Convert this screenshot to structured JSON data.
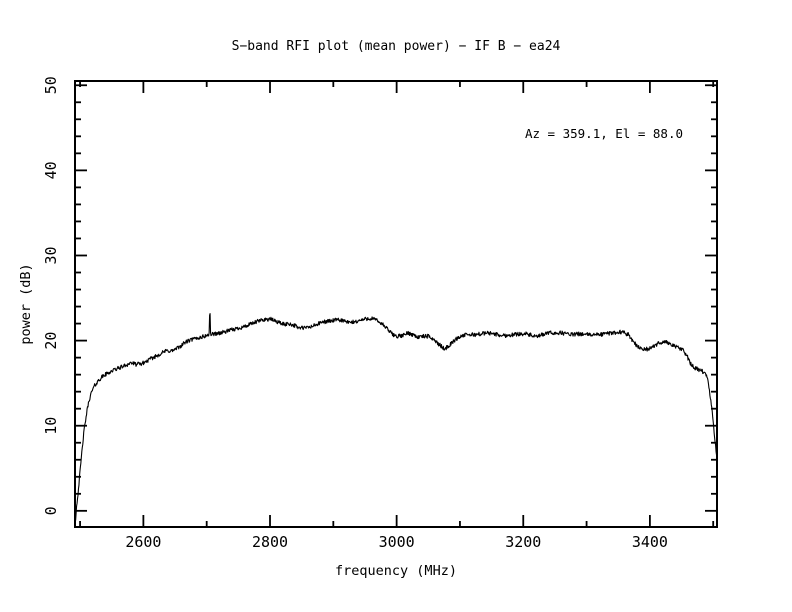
{
  "title": "S−band RFI plot (mean power) − IF B − ea24",
  "annotation": "Az = 359.1, El = 88.0",
  "colors": {
    "foreground": "#000000",
    "background": "#ffffff"
  },
  "chart_data": {
    "type": "line",
    "title": "S−band RFI plot (mean power) − IF B − ea24",
    "annotation": "Az = 359.1, El = 88.0",
    "xlabel": "frequency (MHz)",
    "ylabel": "power (dB)",
    "xlim": [
      2492,
      3506
    ],
    "ylim": [
      -1.9,
      50.5
    ],
    "x_major_ticks": [
      2600,
      2800,
      3000,
      3200,
      3400
    ],
    "x_minor_ticks": [
      2500,
      2700,
      2900,
      3100,
      3300,
      3500
    ],
    "y_major_ticks": [
      0,
      10,
      20,
      30,
      40,
      50
    ],
    "y_minor_step": 2,
    "grid": false,
    "legend": "none",
    "series": [
      {
        "name": "mean power spectrum",
        "noise_db": 0.24,
        "spike": {
          "freq": 2705,
          "peak_db": 24.2,
          "width_mhz": 0.6
        },
        "envelope": [
          [
            2493,
            -1.0
          ],
          [
            2494,
            0.2
          ],
          [
            2496,
            1.5
          ],
          [
            2498,
            3.0
          ],
          [
            2500,
            4.6
          ],
          [
            2502,
            6.2
          ],
          [
            2504,
            7.8
          ],
          [
            2506,
            9.2
          ],
          [
            2509,
            10.8
          ],
          [
            2512,
            12.2
          ],
          [
            2515,
            13.2
          ],
          [
            2519,
            14.1
          ],
          [
            2523,
            14.7
          ],
          [
            2528,
            15.2
          ],
          [
            2534,
            15.7
          ],
          [
            2542,
            16.1
          ],
          [
            2552,
            16.5
          ],
          [
            2562,
            16.8
          ],
          [
            2572,
            17.1
          ],
          [
            2580,
            17.4
          ],
          [
            2588,
            17.2
          ],
          [
            2598,
            17.3
          ],
          [
            2608,
            17.7
          ],
          [
            2618,
            18.1
          ],
          [
            2628,
            18.5
          ],
          [
            2636,
            18.8
          ],
          [
            2646,
            18.8
          ],
          [
            2656,
            19.2
          ],
          [
            2666,
            19.8
          ],
          [
            2676,
            20.1
          ],
          [
            2686,
            20.3
          ],
          [
            2696,
            20.5
          ],
          [
            2704,
            20.7
          ],
          [
            2712,
            20.8
          ],
          [
            2722,
            20.9
          ],
          [
            2732,
            21.1
          ],
          [
            2742,
            21.3
          ],
          [
            2752,
            21.5
          ],
          [
            2762,
            21.7
          ],
          [
            2772,
            22.0
          ],
          [
            2782,
            22.3
          ],
          [
            2792,
            22.5
          ],
          [
            2802,
            22.5
          ],
          [
            2812,
            22.2
          ],
          [
            2822,
            21.9
          ],
          [
            2830,
            22.0
          ],
          [
            2838,
            21.8
          ],
          [
            2846,
            21.5
          ],
          [
            2856,
            21.5
          ],
          [
            2864,
            21.6
          ],
          [
            2874,
            21.9
          ],
          [
            2884,
            22.2
          ],
          [
            2894,
            22.3
          ],
          [
            2904,
            22.4
          ],
          [
            2914,
            22.4
          ],
          [
            2924,
            22.1
          ],
          [
            2934,
            22.2
          ],
          [
            2944,
            22.4
          ],
          [
            2954,
            22.6
          ],
          [
            2962,
            22.6
          ],
          [
            2970,
            22.3
          ],
          [
            2978,
            21.9
          ],
          [
            2986,
            21.3
          ],
          [
            2994,
            20.7
          ],
          [
            3002,
            20.5
          ],
          [
            3010,
            20.6
          ],
          [
            3018,
            20.9
          ],
          [
            3026,
            20.7
          ],
          [
            3034,
            20.4
          ],
          [
            3042,
            20.5
          ],
          [
            3050,
            20.5
          ],
          [
            3058,
            20.2
          ],
          [
            3066,
            19.6
          ],
          [
            3074,
            19.1
          ],
          [
            3080,
            19.2
          ],
          [
            3088,
            19.8
          ],
          [
            3096,
            20.3
          ],
          [
            3104,
            20.6
          ],
          [
            3114,
            20.7
          ],
          [
            3124,
            20.7
          ],
          [
            3134,
            20.8
          ],
          [
            3144,
            20.9
          ],
          [
            3154,
            20.8
          ],
          [
            3164,
            20.6
          ],
          [
            3174,
            20.6
          ],
          [
            3184,
            20.7
          ],
          [
            3194,
            20.8
          ],
          [
            3204,
            20.8
          ],
          [
            3214,
            20.6
          ],
          [
            3222,
            20.4
          ],
          [
            3230,
            20.7
          ],
          [
            3240,
            20.9
          ],
          [
            3250,
            20.9
          ],
          [
            3260,
            20.9
          ],
          [
            3270,
            20.8
          ],
          [
            3280,
            20.7
          ],
          [
            3290,
            20.8
          ],
          [
            3300,
            20.7
          ],
          [
            3310,
            20.7
          ],
          [
            3320,
            20.7
          ],
          [
            3330,
            20.8
          ],
          [
            3340,
            20.9
          ],
          [
            3350,
            21.0
          ],
          [
            3358,
            21.0
          ],
          [
            3366,
            20.7
          ],
          [
            3374,
            19.9
          ],
          [
            3382,
            19.2
          ],
          [
            3390,
            19.0
          ],
          [
            3398,
            19.0
          ],
          [
            3406,
            19.3
          ],
          [
            3414,
            19.7
          ],
          [
            3422,
            19.9
          ],
          [
            3430,
            19.7
          ],
          [
            3438,
            19.4
          ],
          [
            3446,
            19.1
          ],
          [
            3452,
            18.9
          ],
          [
            3458,
            18.3
          ],
          [
            3464,
            17.3
          ],
          [
            3470,
            16.8
          ],
          [
            3476,
            16.6
          ],
          [
            3482,
            16.4
          ],
          [
            3488,
            16.2
          ],
          [
            3492,
            15.2
          ],
          [
            3495,
            13.6
          ],
          [
            3498,
            11.8
          ],
          [
            3501,
            9.6
          ],
          [
            3504,
            7.4
          ],
          [
            3506,
            5.8
          ]
        ]
      }
    ]
  }
}
